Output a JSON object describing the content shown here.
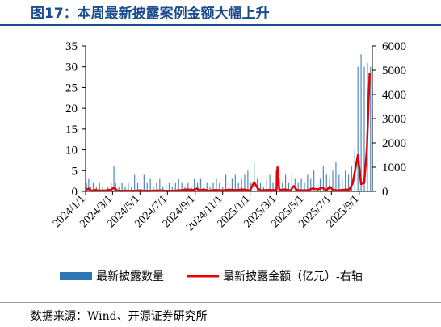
{
  "title": "图17：本周最新披露案例金额大幅上升",
  "source": "数据来源：Wind、开源证券研究所",
  "colors": {
    "bar": "#2e75b6",
    "line": "#e60000",
    "title": "#1a4b8c"
  },
  "chart_data": {
    "type": "bar+line",
    "x_tick_labels": [
      "2024/1/1",
      "2024/3/1",
      "2024/5/1",
      "2024/7/1",
      "2024/9/1",
      "2024/11/1",
      "2025/1/1",
      "2025/3/1",
      "2025/5/1",
      "2025/7/1",
      "2025/9/1"
    ],
    "x_range": [
      "2024/1/1",
      "2025/9/30"
    ],
    "y_left": {
      "ticks": [
        0,
        5,
        10,
        15,
        20,
        25,
        30,
        35
      ],
      "ylim": [
        0,
        35
      ]
    },
    "y_right": {
      "ticks": [
        0,
        1000,
        2000,
        3000,
        4000,
        5000,
        6000
      ],
      "ylim": [
        0,
        6000
      ]
    },
    "legend": {
      "position": "bottom",
      "entries": [
        "最新披露数量",
        "最新披露金额（亿元）-右轴"
      ]
    },
    "series": [
      {
        "name": "最新披露数量",
        "type": "bar",
        "axis": "left",
        "points": [
          [
            "2024/1/3",
            2
          ],
          [
            "2024/1/8",
            3
          ],
          [
            "2024/1/12",
            1
          ],
          [
            "2024/1/18",
            2
          ],
          [
            "2024/1/25",
            1
          ],
          [
            "2024/2/1",
            2
          ],
          [
            "2024/2/8",
            1
          ],
          [
            "2024/2/20",
            1
          ],
          [
            "2024/2/27",
            2
          ],
          [
            "2024/3/4",
            6
          ],
          [
            "2024/3/8",
            2
          ],
          [
            "2024/3/15",
            1
          ],
          [
            "2024/3/22",
            2
          ],
          [
            "2024/3/29",
            1
          ],
          [
            "2024/4/5",
            2
          ],
          [
            "2024/4/12",
            1
          ],
          [
            "2024/4/19",
            4
          ],
          [
            "2024/4/26",
            2
          ],
          [
            "2024/5/3",
            1
          ],
          [
            "2024/5/10",
            4
          ],
          [
            "2024/5/17",
            2
          ],
          [
            "2024/5/24",
            3
          ],
          [
            "2024/5/31",
            1
          ],
          [
            "2024/6/7",
            2
          ],
          [
            "2024/6/14",
            3
          ],
          [
            "2024/6/21",
            1
          ],
          [
            "2024/6/28",
            2
          ],
          [
            "2024/7/5",
            2
          ],
          [
            "2024/7/12",
            1
          ],
          [
            "2024/7/19",
            2
          ],
          [
            "2024/7/26",
            3
          ],
          [
            "2024/8/2",
            2
          ],
          [
            "2024/8/9",
            1
          ],
          [
            "2024/8/16",
            2
          ],
          [
            "2024/8/23",
            1
          ],
          [
            "2024/8/30",
            3
          ],
          [
            "2024/9/6",
            2
          ],
          [
            "2024/9/13",
            3
          ],
          [
            "2024/9/20",
            1
          ],
          [
            "2024/9/27",
            2
          ],
          [
            "2024/10/4",
            1
          ],
          [
            "2024/10/11",
            2
          ],
          [
            "2024/10/18",
            3
          ],
          [
            "2024/10/25",
            2
          ],
          [
            "2024/11/1",
            1
          ],
          [
            "2024/11/8",
            4
          ],
          [
            "2024/11/15",
            2
          ],
          [
            "2024/11/22",
            3
          ],
          [
            "2024/11/29",
            4
          ],
          [
            "2024/12/6",
            2
          ],
          [
            "2024/12/13",
            3
          ],
          [
            "2024/12/20",
            4
          ],
          [
            "2024/12/27",
            5
          ],
          [
            "2025/1/3",
            2
          ],
          [
            "2025/1/10",
            7
          ],
          [
            "2025/1/17",
            3
          ],
          [
            "2025/1/24",
            2
          ],
          [
            "2025/1/31",
            1
          ],
          [
            "2025/2/7",
            3
          ],
          [
            "2025/2/14",
            4
          ],
          [
            "2025/2/21",
            2
          ],
          [
            "2025/2/28",
            5
          ],
          [
            "2025/3/7",
            3
          ],
          [
            "2025/3/14",
            2
          ],
          [
            "2025/3/21",
            4
          ],
          [
            "2025/3/28",
            2
          ],
          [
            "2025/4/4",
            4
          ],
          [
            "2025/4/11",
            3
          ],
          [
            "2025/4/18",
            2
          ],
          [
            "2025/4/25",
            3
          ],
          [
            "2025/5/2",
            2
          ],
          [
            "2025/5/9",
            4
          ],
          [
            "2025/5/16",
            3
          ],
          [
            "2025/5/23",
            5
          ],
          [
            "2025/5/30",
            2
          ],
          [
            "2025/6/6",
            3
          ],
          [
            "2025/6/13",
            6
          ],
          [
            "2025/6/20",
            4
          ],
          [
            "2025/6/27",
            3
          ],
          [
            "2025/7/4",
            5
          ],
          [
            "2025/7/11",
            7
          ],
          [
            "2025/7/18",
            4
          ],
          [
            "2025/7/25",
            3
          ],
          [
            "2025/8/1",
            5
          ],
          [
            "2025/8/8",
            4
          ],
          [
            "2025/8/15",
            6
          ],
          [
            "2025/8/22",
            10
          ],
          [
            "2025/8/29",
            30
          ],
          [
            "2025/9/5",
            33
          ],
          [
            "2025/9/12",
            30
          ],
          [
            "2025/9/19",
            31
          ],
          [
            "2025/9/26",
            30
          ]
        ]
      },
      {
        "name": "最新披露金额（亿元）-右轴",
        "type": "line",
        "axis": "right",
        "points": [
          [
            "2024/1/1",
            50
          ],
          [
            "2024/1/8",
            120
          ],
          [
            "2024/1/15",
            20
          ],
          [
            "2024/1/22",
            60
          ],
          [
            "2024/2/1",
            30
          ],
          [
            "2024/2/15",
            40
          ],
          [
            "2024/2/27",
            70
          ],
          [
            "2024/3/4",
            160
          ],
          [
            "2024/3/11",
            40
          ],
          [
            "2024/3/18",
            20
          ],
          [
            "2024/4/1",
            30
          ],
          [
            "2024/4/15",
            20
          ],
          [
            "2024/5/1",
            40
          ],
          [
            "2024/5/15",
            20
          ],
          [
            "2024/6/1",
            30
          ],
          [
            "2024/6/15",
            40
          ],
          [
            "2024/7/1",
            20
          ],
          [
            "2024/7/15",
            30
          ],
          [
            "2024/8/1",
            50
          ],
          [
            "2024/8/15",
            80
          ],
          [
            "2024/8/29",
            60
          ],
          [
            "2024/9/5",
            120
          ],
          [
            "2024/9/12",
            40
          ],
          [
            "2024/9/19",
            80
          ],
          [
            "2024/10/1",
            30
          ],
          [
            "2024/10/15",
            60
          ],
          [
            "2024/11/1",
            40
          ],
          [
            "2024/11/15",
            70
          ],
          [
            "2024/12/1",
            50
          ],
          [
            "2024/12/15",
            80
          ],
          [
            "2025/1/1",
            40
          ],
          [
            "2025/1/10",
            380
          ],
          [
            "2025/1/18",
            120
          ],
          [
            "2025/1/25",
            40
          ],
          [
            "2025/2/10",
            60
          ],
          [
            "2025/2/24",
            50
          ],
          [
            "2025/3/1",
            80
          ],
          [
            "2025/3/3",
            1000
          ],
          [
            "2025/3/7",
            60
          ],
          [
            "2025/3/20",
            80
          ],
          [
            "2025/4/1",
            40
          ],
          [
            "2025/4/8",
            220
          ],
          [
            "2025/4/15",
            60
          ],
          [
            "2025/4/25",
            40
          ],
          [
            "2025/5/10",
            50
          ],
          [
            "2025/5/20",
            120
          ],
          [
            "2025/6/1",
            80
          ],
          [
            "2025/6/10",
            160
          ],
          [
            "2025/6/20",
            40
          ],
          [
            "2025/6/27",
            200
          ],
          [
            "2025/7/4",
            60
          ],
          [
            "2025/7/15",
            40
          ],
          [
            "2025/8/1",
            70
          ],
          [
            "2025/8/10",
            80
          ],
          [
            "2025/8/17",
            320
          ],
          [
            "2025/8/24",
            1000
          ],
          [
            "2025/8/29",
            1500
          ],
          [
            "2025/9/5",
            300
          ],
          [
            "2025/9/12",
            350
          ],
          [
            "2025/9/18",
            1800
          ],
          [
            "2025/9/24",
            4900
          ]
        ]
      }
    ]
  }
}
